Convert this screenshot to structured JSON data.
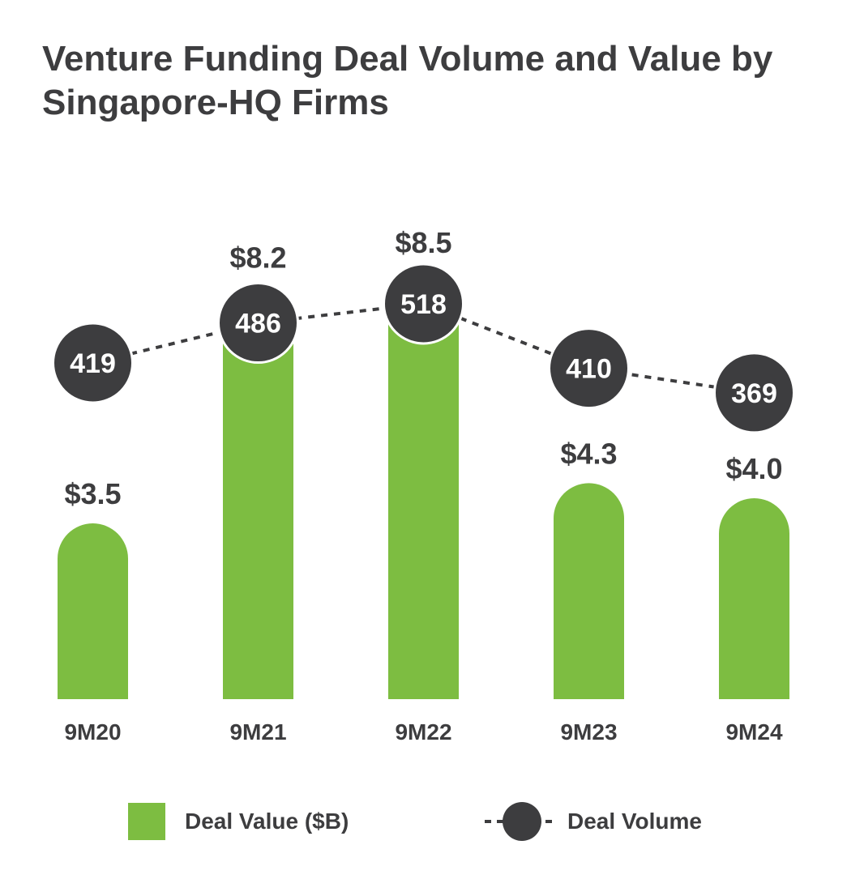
{
  "title": "Venture Funding Deal Volume and Value by Singapore-HQ Firms",
  "colors": {
    "bar": "#7dbd41",
    "marker": "#3d3d3f",
    "text": "#3d3d3f",
    "marker_text": "#ffffff"
  },
  "chart_data": {
    "type": "bar",
    "title": "Venture Funding Deal Volume and Value by Singapore-HQ Firms",
    "categories": [
      "9M20",
      "9M21",
      "9M22",
      "9M23",
      "9M24"
    ],
    "series": [
      {
        "name": "Deal Value ($B)",
        "type": "bar",
        "values": [
          3.5,
          8.2,
          8.5,
          4.3,
          4.0
        ],
        "labels": [
          "$3.5",
          "$8.2",
          "$8.5",
          "$4.3",
          "$4.0"
        ]
      },
      {
        "name": "Deal Volume",
        "type": "line",
        "style": "dashed",
        "values": [
          419,
          486,
          518,
          410,
          369
        ],
        "labels": [
          "419",
          "486",
          "518",
          "410",
          "369"
        ]
      }
    ],
    "legend_position": "bottom",
    "grid": false
  },
  "legend": {
    "value_label": "Deal Value ($B)",
    "volume_label": "Deal Volume"
  }
}
